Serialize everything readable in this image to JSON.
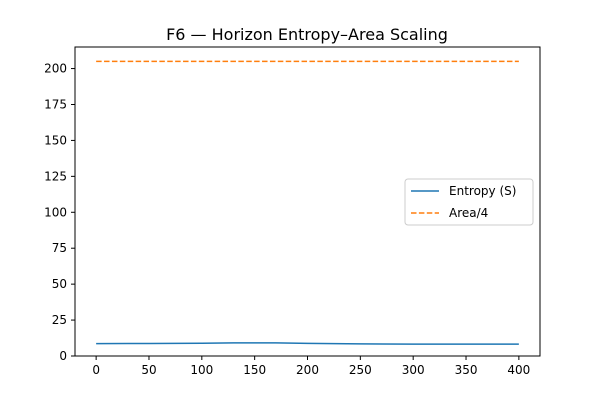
{
  "chart_data": {
    "type": "line",
    "title": "F6 — Horizon Entropy–Area Scaling",
    "xlabel": "",
    "ylabel": "",
    "xlim": [
      -20,
      420
    ],
    "ylim": [
      0,
      215
    ],
    "xticks": [
      0,
      50,
      100,
      150,
      200,
      250,
      300,
      350,
      400
    ],
    "yticks": [
      0,
      25,
      50,
      75,
      100,
      125,
      150,
      175,
      200
    ],
    "grid": false,
    "legend_position": "center-right",
    "series": [
      {
        "name": "Entropy (S)",
        "color": "#1f77b4",
        "style": "solid",
        "x": [
          0,
          50,
          100,
          130,
          170,
          200,
          250,
          300,
          350,
          400
        ],
        "y": [
          8.6,
          8.7,
          8.9,
          9.1,
          9.1,
          8.8,
          8.4,
          8.3,
          8.3,
          8.3
        ]
      },
      {
        "name": "Area/4",
        "color": "#ff7f0e",
        "style": "dashed",
        "x": [
          0,
          100,
          200,
          300,
          400
        ],
        "y": [
          205,
          205,
          205,
          205,
          205
        ]
      }
    ]
  }
}
